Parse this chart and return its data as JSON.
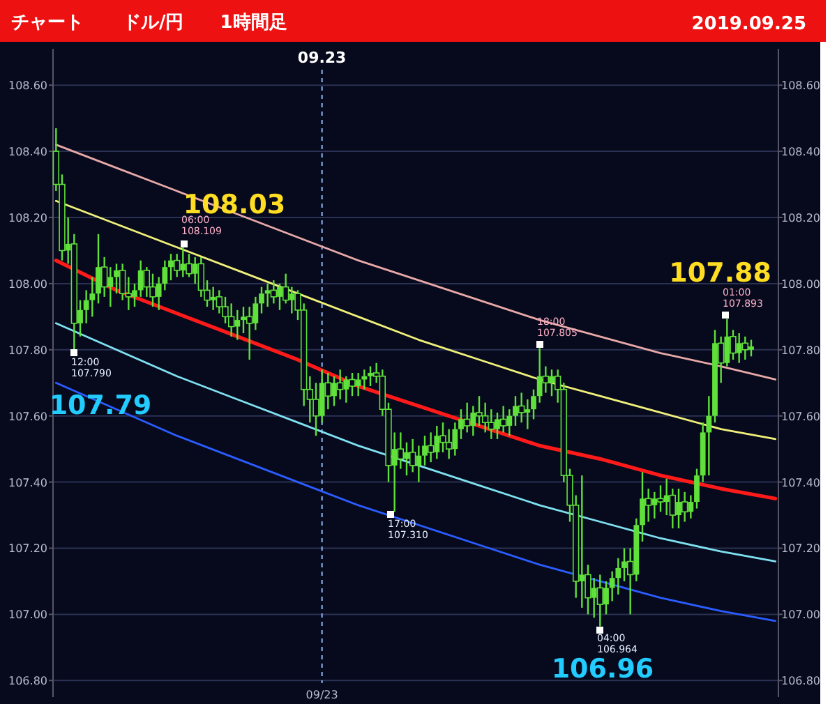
{
  "chart_data": {
    "type": "candlestick",
    "title": "チャート",
    "subtitle": "ドル/円　　1時間足",
    "categories": [
      null,
      null,
      null,
      null,
      null,
      null,
      null,
      null,
      null,
      null,
      null,
      null,
      null,
      null,
      null,
      null,
      null,
      null,
      null,
      null,
      null,
      null,
      null,
      null,
      null,
      null,
      null,
      null,
      null,
      null,
      null,
      null,
      null,
      null,
      null,
      null,
      null,
      null,
      null,
      null,
      null,
      null,
      null,
      null,
      "09/23",
      null,
      null,
      null,
      null,
      null,
      null,
      null,
      null,
      null,
      null,
      null,
      null,
      null,
      null,
      null,
      null,
      null,
      null,
      null,
      null,
      null,
      null,
      null,
      null,
      null,
      null,
      null,
      null,
      null,
      null,
      null,
      null,
      null,
      null,
      null,
      null,
      null,
      null,
      null,
      null,
      null,
      null,
      null,
      null,
      null,
      null,
      null,
      null,
      null,
      null,
      null,
      null,
      null,
      null,
      null,
      null,
      null,
      null,
      null,
      null,
      null,
      null,
      null,
      null,
      null,
      null,
      null,
      null,
      null,
      null,
      null,
      null,
      null,
      null,
      null
    ],
    "color": "#5fe03a",
    "ohlc": [
      [
        108.4,
        108.47,
        108.28,
        108.3
      ],
      [
        108.3,
        108.33,
        108.07,
        108.1
      ],
      [
        108.1,
        108.2,
        108.06,
        108.12
      ],
      [
        108.12,
        108.15,
        107.79,
        107.88
      ],
      [
        107.88,
        107.95,
        107.84,
        107.92
      ],
      [
        107.92,
        107.98,
        107.88,
        107.95
      ],
      [
        107.95,
        108.02,
        107.9,
        107.97
      ],
      [
        107.97,
        108.15,
        107.94,
        108.05
      ],
      [
        108.05,
        108.08,
        107.96,
        107.99
      ],
      [
        107.99,
        108.05,
        107.93,
        108.02
      ],
      [
        108.02,
        108.06,
        107.97,
        108.04
      ],
      [
        108.04,
        108.06,
        107.95,
        107.97
      ],
      [
        107.97,
        108.02,
        107.92,
        107.96
      ],
      [
        107.96,
        108.0,
        107.93,
        107.98
      ],
      [
        107.98,
        108.07,
        107.96,
        108.04
      ],
      [
        108.04,
        108.05,
        107.96,
        107.99
      ],
      [
        107.99,
        108.03,
        107.93,
        107.96
      ],
      [
        107.96,
        108.02,
        107.92,
        108.0
      ],
      [
        108.0,
        108.07,
        107.98,
        108.05
      ],
      [
        108.05,
        108.09,
        108.01,
        108.07
      ],
      [
        108.07,
        108.09,
        108.02,
        108.04
      ],
      [
        108.04,
        108.109,
        108.02,
        108.06
      ],
      [
        108.06,
        108.09,
        108.02,
        108.03
      ],
      [
        108.03,
        108.08,
        108.0,
        108.06
      ],
      [
        108.06,
        108.08,
        107.96,
        107.98
      ],
      [
        107.98,
        108.01,
        107.93,
        107.95
      ],
      [
        107.95,
        107.99,
        107.92,
        107.96
      ],
      [
        107.96,
        107.98,
        107.91,
        107.93
      ],
      [
        107.93,
        107.96,
        107.88,
        107.9
      ],
      [
        107.9,
        107.94,
        107.84,
        107.87
      ],
      [
        107.87,
        107.92,
        107.83,
        107.89
      ],
      [
        107.89,
        107.93,
        107.85,
        107.9
      ],
      [
        107.9,
        107.93,
        107.77,
        107.88
      ],
      [
        107.88,
        107.96,
        107.86,
        107.94
      ],
      [
        107.94,
        107.99,
        107.91,
        107.97
      ],
      [
        107.97,
        108.0,
        107.93,
        107.98
      ],
      [
        107.98,
        108.01,
        107.94,
        107.96
      ],
      [
        107.96,
        108.0,
        107.92,
        107.99
      ],
      [
        107.99,
        108.03,
        107.94,
        107.95
      ],
      [
        107.95,
        107.99,
        107.91,
        107.97
      ],
      [
        107.97,
        107.98,
        107.89,
        107.92
      ],
      [
        107.92,
        107.94,
        107.63,
        107.68
      ],
      [
        107.68,
        107.72,
        107.58,
        107.65
      ],
      [
        107.65,
        107.7,
        107.54,
        107.6
      ],
      [
        107.6,
        107.74,
        107.58,
        107.7
      ],
      [
        107.7,
        107.73,
        107.62,
        107.66
      ],
      [
        107.66,
        107.72,
        107.63,
        107.7
      ],
      [
        107.7,
        107.74,
        107.65,
        107.68
      ],
      [
        107.68,
        107.72,
        107.64,
        107.71
      ],
      [
        107.71,
        107.73,
        107.66,
        107.69
      ],
      [
        107.69,
        107.73,
        107.66,
        107.71
      ],
      [
        107.71,
        107.74,
        107.68,
        107.72
      ],
      [
        107.72,
        107.75,
        107.69,
        107.73
      ],
      [
        107.73,
        107.76,
        107.7,
        107.72
      ],
      [
        107.72,
        107.74,
        107.6,
        107.62
      ],
      [
        107.62,
        107.64,
        107.4,
        107.45
      ],
      [
        107.45,
        107.55,
        107.31,
        107.5
      ],
      [
        107.5,
        107.55,
        107.44,
        107.47
      ],
      [
        107.47,
        107.52,
        107.42,
        107.49
      ],
      [
        107.49,
        107.53,
        107.43,
        107.45
      ],
      [
        107.45,
        107.51,
        107.4,
        107.48
      ],
      [
        107.48,
        107.54,
        107.45,
        107.51
      ],
      [
        107.51,
        107.55,
        107.46,
        107.49
      ],
      [
        107.49,
        107.57,
        107.47,
        107.54
      ],
      [
        107.54,
        107.58,
        107.49,
        107.52
      ],
      [
        107.52,
        107.56,
        107.47,
        107.5
      ],
      [
        107.5,
        107.58,
        107.48,
        107.56
      ],
      [
        107.56,
        107.62,
        107.53,
        107.59
      ],
      [
        107.59,
        107.64,
        107.55,
        107.57
      ],
      [
        107.57,
        107.63,
        107.54,
        107.61
      ],
      [
        107.61,
        107.66,
        107.57,
        107.6
      ],
      [
        107.6,
        107.64,
        107.55,
        107.58
      ],
      [
        107.58,
        107.62,
        107.53,
        107.56
      ],
      [
        107.56,
        107.61,
        107.53,
        107.59
      ],
      [
        107.59,
        107.63,
        107.55,
        107.57
      ],
      [
        107.57,
        107.62,
        107.54,
        107.6
      ],
      [
        107.6,
        107.66,
        107.57,
        107.63
      ],
      [
        107.63,
        107.67,
        107.58,
        107.61
      ],
      [
        107.61,
        107.65,
        107.56,
        107.62
      ],
      [
        107.62,
        107.68,
        107.59,
        107.66
      ],
      [
        107.66,
        107.805,
        107.64,
        107.72
      ],
      [
        107.72,
        107.75,
        107.67,
        107.7
      ],
      [
        107.7,
        107.74,
        107.66,
        107.72
      ],
      [
        107.72,
        107.74,
        107.64,
        107.68
      ],
      [
        107.68,
        107.7,
        107.4,
        107.42
      ],
      [
        107.42,
        107.44,
        107.28,
        107.33
      ],
      [
        107.33,
        107.36,
        107.05,
        107.1
      ],
      [
        107.1,
        107.42,
        107.02,
        107.12
      ],
      [
        107.12,
        107.15,
        107.0,
        107.05
      ],
      [
        107.05,
        107.11,
        106.99,
        107.08
      ],
      [
        107.08,
        107.12,
        106.964,
        107.03
      ],
      [
        107.03,
        107.1,
        107.0,
        107.08
      ],
      [
        107.08,
        107.13,
        107.04,
        107.11
      ],
      [
        107.11,
        107.17,
        107.06,
        107.14
      ],
      [
        107.14,
        107.2,
        107.1,
        107.16
      ],
      [
        107.16,
        107.2,
        107.0,
        107.12
      ],
      [
        107.12,
        107.29,
        107.1,
        107.27
      ],
      [
        107.27,
        107.43,
        107.22,
        107.35
      ],
      [
        107.35,
        107.38,
        107.28,
        107.33
      ],
      [
        107.33,
        107.37,
        107.29,
        107.35
      ],
      [
        107.35,
        107.39,
        107.31,
        107.34
      ],
      [
        107.34,
        107.41,
        107.3,
        107.36
      ],
      [
        107.36,
        107.38,
        107.26,
        107.3
      ],
      [
        107.3,
        107.38,
        107.26,
        107.34
      ],
      [
        107.34,
        107.37,
        107.28,
        107.31
      ],
      [
        107.31,
        107.36,
        107.29,
        107.34
      ],
      [
        107.34,
        107.44,
        107.32,
        107.42
      ],
      [
        107.42,
        107.58,
        107.4,
        107.55
      ],
      [
        107.55,
        107.66,
        107.42,
        107.6
      ],
      [
        107.6,
        107.86,
        107.58,
        107.82
      ],
      [
        107.82,
        107.84,
        107.7,
        107.76
      ],
      [
        107.76,
        107.893,
        107.75,
        107.84
      ],
      [
        107.84,
        107.86,
        107.77,
        107.79
      ],
      [
        107.79,
        107.85,
        107.76,
        107.82
      ],
      [
        107.82,
        107.84,
        107.77,
        107.8
      ],
      [
        107.8,
        107.83,
        107.78,
        107.81
      ],
      null,
      null,
      null,
      null
    ],
    "series": [
      {
        "type": "line",
        "color": "#e8a8a8",
        "values": [
          108.42,
          null,
          null,
          null,
          null,
          null,
          null,
          null,
          null,
          null,
          108.35,
          null,
          null,
          null,
          null,
          null,
          null,
          null,
          null,
          null,
          108.28,
          null,
          null,
          null,
          null,
          null,
          null,
          null,
          null,
          null,
          108.21,
          null,
          null,
          null,
          null,
          null,
          null,
          null,
          null,
          null,
          108.14,
          null,
          null,
          null,
          null,
          null,
          null,
          null,
          null,
          null,
          108.07,
          null,
          null,
          null,
          null,
          null,
          null,
          null,
          null,
          null,
          108.01,
          null,
          null,
          null,
          null,
          null,
          null,
          null,
          null,
          null,
          107.95,
          null,
          null,
          null,
          null,
          null,
          null,
          null,
          null,
          null,
          107.89,
          null,
          null,
          null,
          null,
          null,
          null,
          null,
          null,
          null,
          107.84,
          null,
          null,
          null,
          null,
          null,
          null,
          null,
          null,
          null,
          107.79,
          null,
          null,
          null,
          null,
          null,
          null,
          null,
          null,
          null,
          107.75,
          null,
          null,
          null,
          null,
          null,
          null,
          null,
          null,
          107.71
        ]
      },
      {
        "type": "line",
        "color": "#f0f07a",
        "values": [
          108.25,
          null,
          null,
          null,
          null,
          null,
          null,
          null,
          null,
          null,
          108.18,
          null,
          null,
          null,
          null,
          null,
          null,
          null,
          null,
          null,
          108.11,
          null,
          null,
          null,
          null,
          null,
          null,
          null,
          null,
          null,
          108.04,
          null,
          null,
          null,
          null,
          null,
          null,
          null,
          null,
          null,
          107.97,
          null,
          null,
          null,
          null,
          null,
          null,
          null,
          null,
          null,
          107.9,
          null,
          null,
          null,
          null,
          null,
          null,
          null,
          null,
          null,
          107.83,
          null,
          null,
          null,
          null,
          null,
          null,
          null,
          null,
          null,
          107.77,
          null,
          null,
          null,
          null,
          null,
          null,
          null,
          null,
          null,
          107.71,
          null,
          null,
          null,
          null,
          null,
          null,
          null,
          null,
          null,
          107.66,
          null,
          null,
          null,
          null,
          null,
          null,
          null,
          null,
          null,
          107.61,
          null,
          null,
          null,
          null,
          null,
          null,
          null,
          null,
          null,
          107.56,
          null,
          null,
          null,
          null,
          null,
          null,
          null,
          null,
          107.53
        ]
      },
      {
        "type": "line",
        "color": "#ff1a1a",
        "values": [
          108.07,
          null,
          null,
          null,
          null,
          null,
          null,
          null,
          null,
          null,
          107.98,
          null,
          null,
          null,
          null,
          null,
          null,
          null,
          null,
          null,
          107.91,
          null,
          null,
          null,
          null,
          null,
          null,
          null,
          null,
          null,
          107.84,
          null,
          null,
          null,
          null,
          null,
          null,
          null,
          null,
          null,
          107.77,
          null,
          null,
          null,
          null,
          null,
          null,
          null,
          null,
          null,
          107.69,
          null,
          null,
          null,
          null,
          null,
          null,
          null,
          null,
          null,
          107.63,
          null,
          null,
          null,
          null,
          null,
          null,
          null,
          null,
          null,
          107.57,
          null,
          null,
          null,
          null,
          null,
          null,
          null,
          null,
          null,
          107.51,
          null,
          null,
          null,
          null,
          null,
          null,
          null,
          null,
          null,
          107.47,
          null,
          null,
          null,
          null,
          null,
          null,
          null,
          null,
          null,
          107.42,
          null,
          null,
          null,
          null,
          null,
          null,
          null,
          null,
          null,
          107.38,
          null,
          null,
          null,
          null,
          null,
          null,
          null,
          null,
          107.35
        ]
      },
      {
        "type": "line",
        "color": "#7fe0f0",
        "values": [
          107.88,
          null,
          null,
          null,
          null,
          null,
          null,
          null,
          null,
          null,
          107.8,
          null,
          null,
          null,
          null,
          null,
          null,
          null,
          null,
          null,
          107.72,
          null,
          null,
          null,
          null,
          null,
          null,
          null,
          null,
          null,
          107.65,
          null,
          null,
          null,
          null,
          null,
          null,
          null,
          null,
          null,
          107.58,
          null,
          null,
          null,
          null,
          null,
          null,
          null,
          null,
          null,
          107.51,
          null,
          null,
          null,
          null,
          null,
          null,
          null,
          null,
          null,
          107.45,
          null,
          null,
          null,
          null,
          null,
          null,
          null,
          null,
          null,
          107.39,
          null,
          null,
          null,
          null,
          null,
          null,
          null,
          null,
          null,
          107.33,
          null,
          null,
          null,
          null,
          null,
          null,
          null,
          null,
          null,
          107.28,
          null,
          null,
          null,
          null,
          null,
          null,
          null,
          null,
          null,
          107.23,
          null,
          null,
          null,
          null,
          null,
          null,
          null,
          null,
          null,
          107.19,
          null,
          null,
          null,
          null,
          null,
          null,
          null,
          null,
          107.16
        ]
      },
      {
        "type": "line",
        "color": "#2b5cff",
        "values": [
          107.7,
          null,
          null,
          null,
          null,
          null,
          null,
          null,
          null,
          null,
          107.62,
          null,
          null,
          null,
          null,
          null,
          null,
          null,
          null,
          null,
          107.54,
          null,
          null,
          null,
          null,
          null,
          null,
          null,
          null,
          null,
          107.47,
          null,
          null,
          null,
          null,
          null,
          null,
          null,
          null,
          null,
          107.4,
          null,
          null,
          null,
          null,
          null,
          null,
          null,
          null,
          null,
          107.33,
          null,
          null,
          null,
          null,
          null,
          null,
          null,
          null,
          null,
          107.27,
          null,
          null,
          null,
          null,
          null,
          null,
          null,
          null,
          null,
          107.21,
          null,
          null,
          null,
          null,
          null,
          null,
          null,
          null,
          null,
          107.15,
          null,
          null,
          null,
          null,
          null,
          null,
          null,
          null,
          null,
          107.1,
          null,
          null,
          null,
          null,
          null,
          null,
          null,
          null,
          null,
          107.05,
          null,
          null,
          null,
          null,
          null,
          null,
          null,
          null,
          null,
          107.01,
          null,
          null,
          null,
          null,
          null,
          null,
          null,
          null,
          106.98
        ]
      }
    ],
    "ylim": [
      106.75,
      108.71
    ],
    "yticks": [
      {
        "value": 106.8,
        "label": "106.80"
      },
      {
        "value": 107.0,
        "label": "107.00"
      },
      {
        "value": 107.2,
        "label": "107.20"
      },
      {
        "value": 107.4,
        "label": "107.40"
      },
      {
        "value": 107.6,
        "label": "107.60"
      },
      {
        "value": 107.8,
        "label": "107.80"
      },
      {
        "value": 108.0,
        "label": "108.00"
      },
      {
        "value": 108.2,
        "label": "108.20"
      },
      {
        "value": 108.4,
        "label": "108.40"
      },
      {
        "value": 108.6,
        "label": "108.60"
      }
    ],
    "y2lim": [
      106.75,
      108.71
    ],
    "y2ticks": [
      {
        "value": 106.8,
        "label": "106.80"
      },
      {
        "value": 107.0,
        "label": "107.00"
      },
      {
        "value": 107.2,
        "label": "107.20"
      },
      {
        "value": 107.4,
        "label": "107.40"
      },
      {
        "value": 107.6,
        "label": "107.60"
      },
      {
        "value": 107.8,
        "label": "107.80"
      },
      {
        "value": 108.0,
        "label": "108.00"
      },
      {
        "value": 108.2,
        "label": "108.20"
      },
      {
        "value": 108.4,
        "label": "108.40"
      },
      {
        "value": 108.6,
        "label": "108.60"
      }
    ],
    "grid": "y",
    "ref_lines": [
      {
        "axis": "x",
        "value": "09/23",
        "label": "09.23",
        "color": "#8fb8ff",
        "line_style": "dashed"
      }
    ],
    "annotations": [
      "2019.09.25",
      "108.03",
      "107.79",
      "107.88",
      "106.96",
      "12:00\n107.790",
      "06:00\n108.109",
      "17:00\n107.310",
      "18:00\n107.805",
      "04:00\n106.964",
      "01:00\n107.893"
    ]
  }
}
